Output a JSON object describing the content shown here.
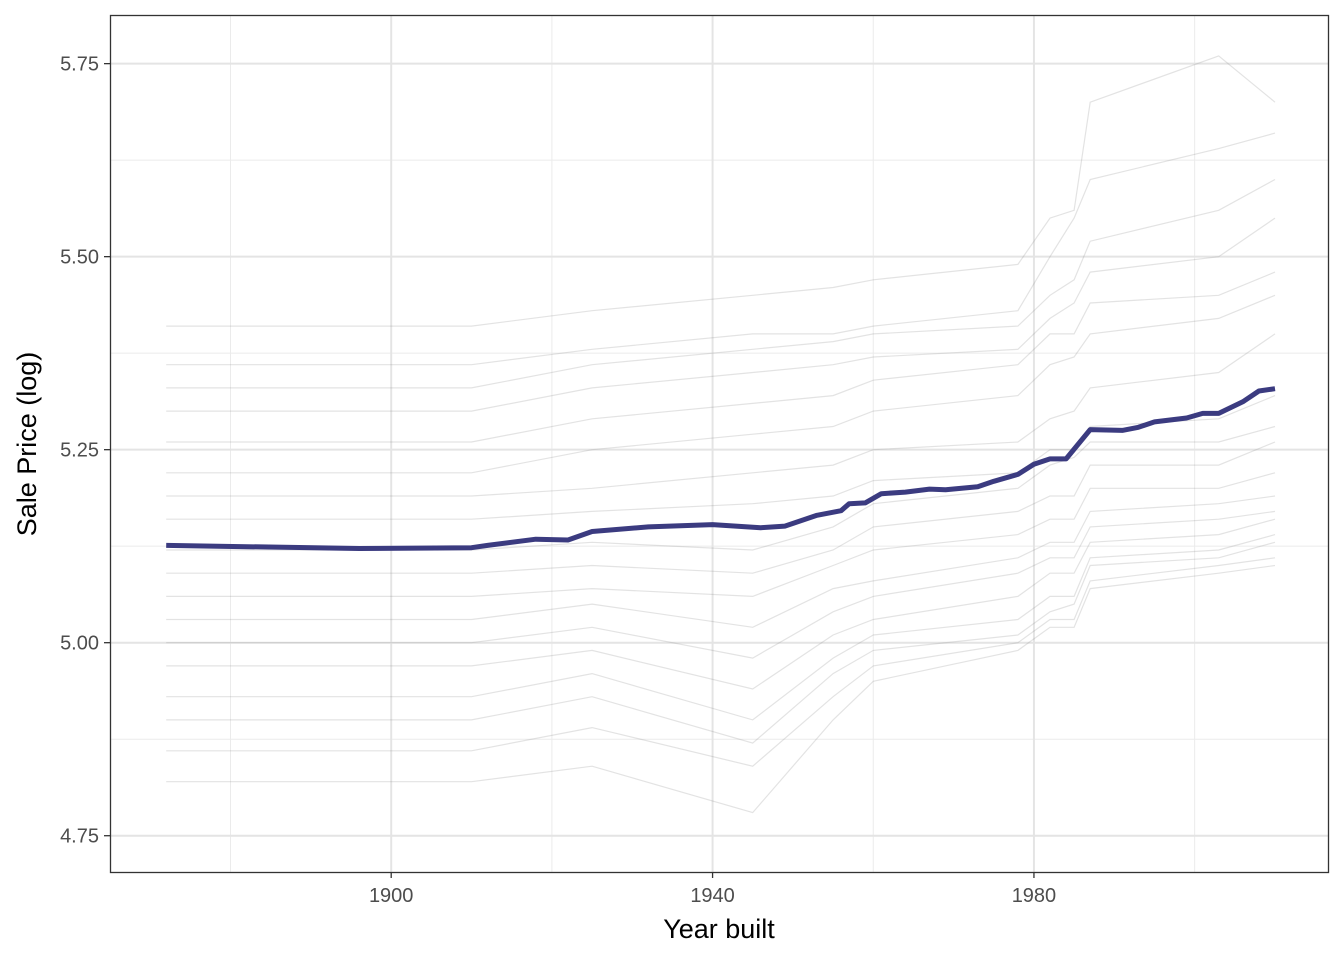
{
  "chart_data": {
    "type": "line",
    "title": "",
    "xlabel": "Year built",
    "ylabel": "Sale Price (log)",
    "xlim": [
      1865,
      2016.6
    ],
    "ylim": [
      4.703,
      5.813
    ],
    "x_ticks": [
      1900,
      1940,
      1980
    ],
    "x_tick_labels": [
      "1900",
      "1940",
      "1980"
    ],
    "y_ticks": [
      4.75,
      5.0,
      5.25,
      5.5,
      5.75
    ],
    "y_tick_labels": [
      "4.75",
      "5.00",
      "5.25",
      "5.50",
      "5.75"
    ],
    "grid": true,
    "colors": {
      "average": "#3b3b80",
      "individual": "#808080"
    },
    "average_curve": {
      "x": [
        1872,
        1896,
        1910,
        1912,
        1918,
        1922,
        1925,
        1932,
        1940,
        1946,
        1949,
        1953,
        1956,
        1957,
        1959,
        1961,
        1964,
        1967,
        1969,
        1973,
        1975,
        1978,
        1980,
        1982,
        1984,
        1987,
        1991,
        1993,
        1995,
        1999,
        2001,
        2003,
        2006,
        2008,
        2010
      ],
      "y": [
        5.126,
        5.122,
        5.123,
        5.126,
        5.134,
        5.133,
        5.144,
        5.15,
        5.153,
        5.149,
        5.151,
        5.165,
        5.171,
        5.18,
        5.181,
        5.193,
        5.195,
        5.199,
        5.198,
        5.202,
        5.209,
        5.218,
        5.231,
        5.238,
        5.238,
        5.276,
        5.275,
        5.279,
        5.286,
        5.291,
        5.297,
        5.297,
        5.312,
        5.326,
        5.329
      ]
    },
    "individual_curves": {
      "x": [
        1872,
        1910,
        1925,
        1945,
        1955,
        1960,
        1978,
        1982,
        1985,
        1987,
        2003,
        2010
      ],
      "series": [
        [
          5.41,
          5.41,
          5.43,
          5.45,
          5.46,
          5.47,
          5.49,
          5.55,
          5.56,
          5.7,
          5.76,
          5.7
        ],
        [
          5.36,
          5.36,
          5.38,
          5.4,
          5.4,
          5.41,
          5.43,
          5.5,
          5.55,
          5.6,
          5.64,
          5.66
        ],
        [
          5.33,
          5.33,
          5.36,
          5.38,
          5.39,
          5.4,
          5.41,
          5.45,
          5.47,
          5.52,
          5.56,
          5.6
        ],
        [
          5.3,
          5.3,
          5.33,
          5.35,
          5.36,
          5.37,
          5.38,
          5.42,
          5.44,
          5.48,
          5.5,
          5.55
        ],
        [
          5.26,
          5.26,
          5.29,
          5.31,
          5.32,
          5.34,
          5.36,
          5.4,
          5.4,
          5.44,
          5.45,
          5.48
        ],
        [
          5.22,
          5.22,
          5.25,
          5.27,
          5.28,
          5.3,
          5.32,
          5.36,
          5.37,
          5.4,
          5.42,
          5.45
        ],
        [
          5.19,
          5.19,
          5.2,
          5.22,
          5.23,
          5.25,
          5.26,
          5.29,
          5.3,
          5.33,
          5.35,
          5.4
        ],
        [
          5.16,
          5.16,
          5.17,
          5.18,
          5.19,
          5.21,
          5.22,
          5.25,
          5.25,
          5.28,
          5.29,
          5.32
        ],
        [
          5.12,
          5.12,
          5.13,
          5.12,
          5.15,
          5.18,
          5.2,
          5.23,
          5.24,
          5.26,
          5.26,
          5.28
        ],
        [
          5.09,
          5.09,
          5.1,
          5.09,
          5.12,
          5.15,
          5.17,
          5.19,
          5.19,
          5.23,
          5.23,
          5.26
        ],
        [
          5.06,
          5.06,
          5.07,
          5.06,
          5.1,
          5.12,
          5.14,
          5.16,
          5.16,
          5.2,
          5.2,
          5.22
        ],
        [
          5.03,
          5.03,
          5.05,
          5.02,
          5.07,
          5.08,
          5.11,
          5.13,
          5.13,
          5.17,
          5.18,
          5.19
        ],
        [
          5.0,
          5.0,
          5.02,
          4.98,
          5.04,
          5.06,
          5.09,
          5.11,
          5.11,
          5.15,
          5.16,
          5.17
        ],
        [
          4.97,
          4.97,
          4.99,
          4.94,
          5.01,
          5.03,
          5.06,
          5.09,
          5.09,
          5.13,
          5.14,
          5.16
        ],
        [
          4.93,
          4.93,
          4.96,
          4.9,
          4.98,
          5.01,
          5.03,
          5.06,
          5.06,
          5.11,
          5.12,
          5.14
        ],
        [
          4.9,
          4.9,
          4.93,
          4.87,
          4.96,
          4.99,
          5.01,
          5.04,
          5.05,
          5.1,
          5.11,
          5.13
        ],
        [
          4.86,
          4.86,
          4.89,
          4.84,
          4.93,
          4.97,
          5.0,
          5.03,
          5.03,
          5.08,
          5.1,
          5.11
        ],
        [
          4.82,
          4.82,
          4.84,
          4.78,
          4.9,
          4.95,
          4.99,
          5.02,
          5.02,
          5.07,
          5.09,
          5.1
        ]
      ]
    }
  }
}
